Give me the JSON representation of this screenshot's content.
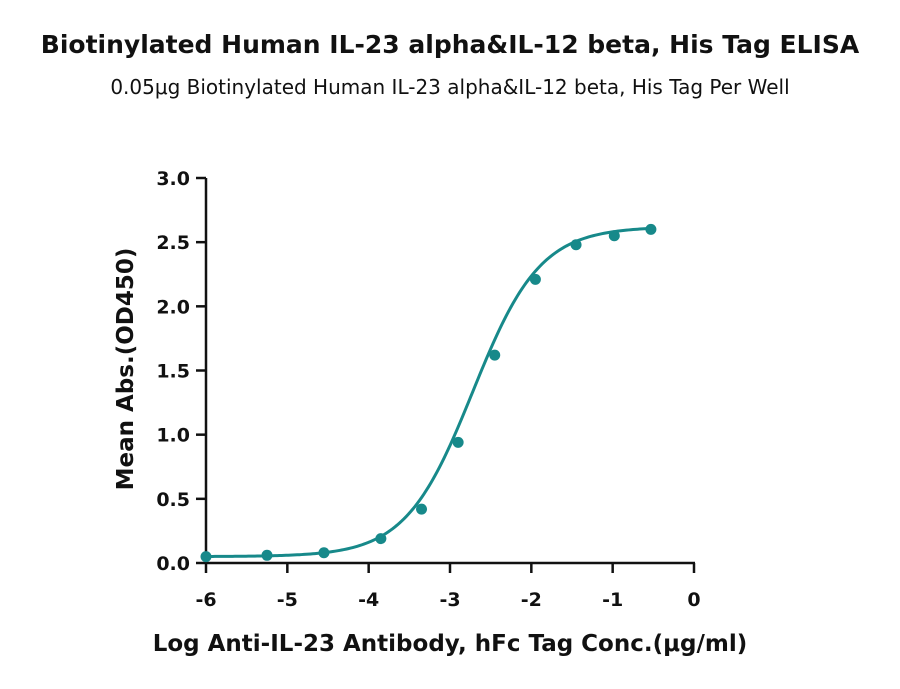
{
  "chart_data": {
    "type": "line",
    "title": "Biotinylated Human IL-23 alpha&IL-12 beta, His Tag ELISA",
    "subtitle": "0.05μg Biotinylated Human IL-23 alpha&IL-12 beta, His Tag Per Well",
    "xlabel": "Log Anti-IL-23 Antibody, hFc Tag Conc.(μg/ml)",
    "ylabel": "Mean Abs.(OD450)",
    "xlim": [
      -6,
      0
    ],
    "ylim": [
      0,
      3.0
    ],
    "x_ticks": [
      "-6",
      "-5",
      "-4",
      "-3",
      "-2",
      "-1",
      "0"
    ],
    "y_ticks": [
      "0.0",
      "0.5",
      "1.0",
      "1.5",
      "2.0",
      "2.5",
      "3.0"
    ],
    "grid": false,
    "legend": "none",
    "color": "#17898a",
    "series": [
      {
        "x": [
          -6.0,
          -5.25,
          -4.55,
          -3.85,
          -3.35,
          -2.9,
          -2.45,
          -1.95,
          -1.45,
          -0.98,
          -0.53
        ],
        "values": [
          0.05,
          0.06,
          0.08,
          0.19,
          0.42,
          0.94,
          1.62,
          2.21,
          2.48,
          2.55,
          2.6
        ]
      }
    ],
    "fit_curve": {
      "model": "4PL",
      "bottom": 0.05,
      "top": 2.62,
      "logEC50": -2.72,
      "hill": 1.05
    }
  }
}
